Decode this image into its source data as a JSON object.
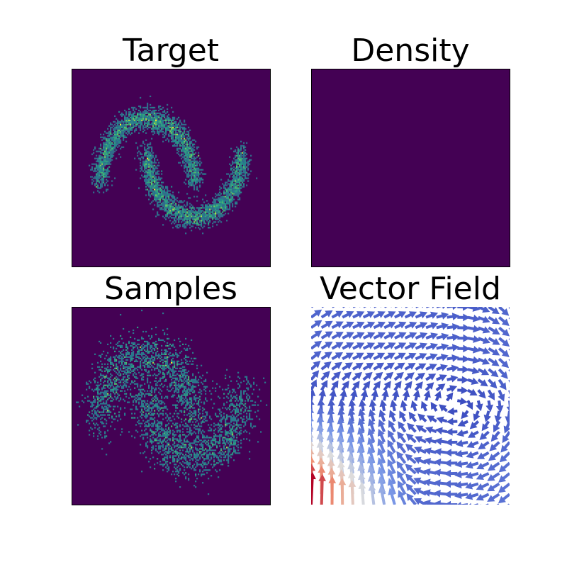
{
  "figure": {
    "background": "#ffffff",
    "colormap_low": "#440154",
    "field_colormap": "coolwarm"
  },
  "chart_data": [
    {
      "type": "heatmap",
      "title": "Target",
      "axes_visible": false,
      "description_of_values": "2-D histogram of points drawn from two interleaving half-moon shapes (two-moons dataset)",
      "distribution": "two_moons",
      "noise": 0.09,
      "max_value_color": "#fde725",
      "background_color": "#440154"
    },
    {
      "type": "heatmap",
      "title": "Density",
      "axes_visible": false,
      "uniform": true,
      "background_color": "#440154"
    },
    {
      "type": "heatmap",
      "title": "Samples",
      "axes_visible": false,
      "distribution": "two_moons_noisy",
      "noise": 0.2,
      "background_color": "#440154"
    },
    {
      "type": "quiver",
      "title": "Vector Field",
      "axes_visible": false,
      "grid_size": 20,
      "color_range": [
        "#3b4cc0",
        "#dddddd",
        "#b40426"
      ],
      "max_magnitude_region": "bottom-left"
    }
  ]
}
